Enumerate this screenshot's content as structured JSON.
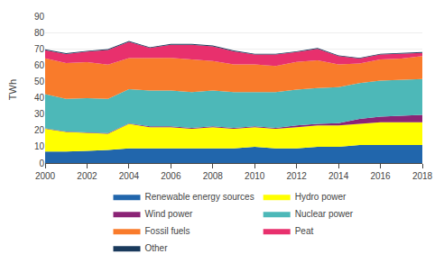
{
  "chart_data": {
    "type": "area",
    "stacked": true,
    "x": [
      2000,
      2001,
      2002,
      2003,
      2004,
      2005,
      2006,
      2007,
      2008,
      2009,
      2010,
      2011,
      2012,
      2013,
      2014,
      2015,
      2016,
      2017,
      2018
    ],
    "series": [
      {
        "name": "Renewable energy sources",
        "color": "#2166ac",
        "values": [
          7,
          7,
          7.5,
          8,
          9,
          9,
          9,
          9,
          9,
          9,
          10,
          9,
          9,
          10,
          10,
          11,
          11,
          11,
          11
        ]
      },
      {
        "name": "Hydro power",
        "color": "#ffff00",
        "values": [
          14,
          12,
          11,
          10,
          15,
          13,
          13,
          12,
          13,
          12,
          12,
          12,
          13,
          13,
          13,
          13,
          14,
          14,
          14
        ]
      },
      {
        "name": "Wind power",
        "color": "#8b2476",
        "values": [
          0.2,
          0.3,
          0.3,
          0.3,
          0.3,
          0.5,
          0.5,
          0.5,
          0.5,
          0.5,
          0.5,
          0.5,
          1.0,
          1.0,
          1.5,
          3.0,
          3.5,
          4.0,
          4.5
        ]
      },
      {
        "name": "Nuclear power",
        "color": "#4db8b8",
        "values": [
          21,
          20,
          21,
          21,
          21,
          22,
          22,
          22,
          22,
          22,
          21,
          22,
          22,
          22,
          22,
          22,
          22,
          22,
          22
        ]
      },
      {
        "name": "Fossil fuels",
        "color": "#f97b2b",
        "values": [
          22,
          22,
          22,
          21,
          19,
          20,
          20,
          20,
          18,
          17,
          17,
          16,
          17,
          17,
          14,
          12,
          13,
          13,
          14
        ]
      },
      {
        "name": "Peat",
        "color": "#e8306d",
        "values": [
          5,
          5.5,
          6.5,
          9,
          10,
          6,
          8,
          9,
          9,
          8,
          6,
          7,
          6,
          7,
          5,
          3,
          3,
          3,
          2
        ]
      },
      {
        "name": "Other",
        "color": "#1a3a5c",
        "values": [
          0.5,
          0.5,
          0.5,
          0.5,
          0.5,
          0.5,
          0.5,
          0.5,
          0.5,
          0.5,
          0.5,
          0.5,
          0.5,
          0.5,
          0.5,
          0.5,
          0.5,
          0.5,
          0.5
        ]
      }
    ],
    "ylabel": "TWh",
    "xlim": [
      2000,
      2018
    ],
    "xticks": [
      2000,
      2002,
      2004,
      2006,
      2008,
      2010,
      2012,
      2014,
      2016,
      2018
    ],
    "ylim": [
      0,
      90
    ],
    "yticks": [
      0,
      10,
      20,
      30,
      40,
      50,
      60,
      70,
      80,
      90
    ],
    "grid": true,
    "legend": "bottom"
  }
}
